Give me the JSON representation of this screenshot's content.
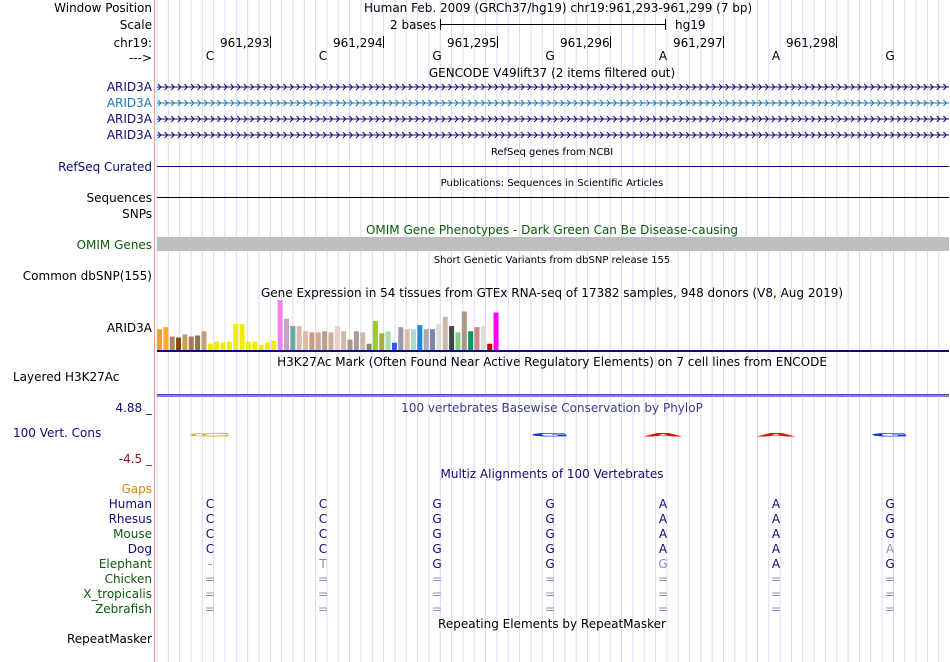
{
  "header": {
    "assembly_line": "Human Feb. 2009 (GRCh37/hg19)   chr19:961,293-961,299 (7 bp)",
    "scale_value": "2 bases",
    "scale_db": "hg19"
  },
  "labels": {
    "window_position": "Window Position",
    "scale": "Scale",
    "chromosome": "chr19:",
    "strand": "--->",
    "arid3a_1": "ARID3A",
    "arid3a_2": "ARID3A",
    "arid3a_3": "ARID3A",
    "arid3a_4": "ARID3A",
    "refseq": "RefSeq Curated",
    "sequences": "Sequences",
    "snps": "SNPs",
    "omim_genes": "OMIM Genes",
    "common_dbsnp": "Common dbSNP(155)",
    "gtex_gene": "ARID3A",
    "layered_h3k27ac": "Layered H3K27Ac",
    "cons_max": "4.88 _",
    "cons_track": "100 Vert. Cons",
    "cons_min": "-4.5 _",
    "gaps": "Gaps"
  },
  "ruler": {
    "positions": [
      "961,293",
      "961,294",
      "961,295",
      "961,296",
      "961,297",
      "961,298"
    ],
    "bases": [
      "C",
      "C",
      "G",
      "G",
      "A",
      "A",
      "G"
    ]
  },
  "track_titles": {
    "gencode": "GENCODE V49lift37 (2 items filtered out)",
    "refseq": "RefSeq genes from NCBI",
    "publications": "Publications: Sequences in Scientific Articles",
    "omim": "OMIM Gene Phenotypes - Dark Green Can Be Disease-causing",
    "snp155": "Short Genetic Variants from dbSNP release 155",
    "gtex": "Gene Expression in 54 tissues from GTEx RNA-seq of 17382 samples, 948 donors (V8, Aug 2019)",
    "h3k27ac": "H3K27Ac Mark (Often Found Near Active Regulatory Elements) on 7 cell lines from ENCODE",
    "phylop": "100 vertebrates Basewise Conservation by PhyloP",
    "multiz": "Multiz Alignments of 100 Vertebrates",
    "repeatmasker": "Repeating Elements by RepeatMasker"
  },
  "conservation_logo": [
    "C",
    "",
    "",
    "G",
    "A",
    "A",
    "G"
  ],
  "gtex_bars": {
    "values": [
      20,
      22,
      13,
      12,
      15,
      13,
      14,
      18,
      6,
      8,
      7,
      8,
      25,
      25,
      8,
      8,
      5,
      7,
      9,
      48,
      30,
      23,
      23,
      18,
      17,
      17,
      18,
      17,
      23,
      18,
      10,
      18,
      17,
      6,
      28,
      16,
      18,
      7,
      22,
      20,
      20,
      24,
      20,
      20,
      25,
      32,
      23,
      17,
      37,
      18,
      22,
      23,
      6,
      36
    ],
    "colors": [
      "#ff9933",
      "#ffaa33",
      "#aa8866",
      "#8b4513",
      "#c0a060",
      "#aa7766",
      "#8b7355",
      "#c0a080",
      "#eeee00",
      "#eeee00",
      "#eeee00",
      "#eeee00",
      "#eeee00",
      "#eeee00",
      "#eeee00",
      "#eeee00",
      "#eeee00",
      "#eeee00",
      "#eeee00",
      "#ee82ee",
      "#c8a0c8",
      "#66aaaa",
      "#ddbbaa",
      "#ddbbaa",
      "#cc9988",
      "#ccaa99",
      "#bba088",
      "#c8b0a0",
      "#eecccc",
      "#ccbbaa",
      "#aa9988",
      "#aa9999",
      "#ccbbaa",
      "#888888",
      "#99cc33",
      "#aaaa55",
      "#aaddaa",
      "#3355ff",
      "#9999aa",
      "#ddbbaa",
      "#aaddcc",
      "#2288dd",
      "#aaaaaa",
      "#7788aa",
      "#dddddd",
      "#ccbbaa",
      "#444444",
      "#88cc88",
      "#aa9988",
      "#009966",
      "#cc8888",
      "#dddddd",
      "#cc0000",
      "#ff00ff"
    ]
  },
  "alignments": [
    {
      "species": "Human",
      "bases": [
        "C",
        "C",
        "G",
        "G",
        "A",
        "A",
        "G"
      ],
      "colors": [
        "navy",
        "navy",
        "navy",
        "navy",
        "navy",
        "navy",
        "navy"
      ],
      "label_color": "#0c0c78"
    },
    {
      "species": "Rhesus",
      "bases": [
        "C",
        "C",
        "G",
        "G",
        "A",
        "A",
        "G"
      ],
      "colors": [
        "navy",
        "navy",
        "navy",
        "navy",
        "navy",
        "navy",
        "navy"
      ],
      "label_color": "#0c0c78"
    },
    {
      "species": "Mouse",
      "bases": [
        "C",
        "C",
        "G",
        "G",
        "A",
        "A",
        "G"
      ],
      "colors": [
        "navy",
        "navy",
        "navy",
        "navy",
        "navy",
        "navy",
        "navy"
      ],
      "label_color": "#0c5a0c"
    },
    {
      "species": "Dog",
      "bases": [
        "C",
        "C",
        "G",
        "G",
        "A",
        "A",
        "A"
      ],
      "colors": [
        "navy",
        "navy",
        "navy",
        "navy",
        "navy",
        "navy",
        "light"
      ],
      "label_color": "#0c0c78"
    },
    {
      "species": "Elephant",
      "bases": [
        "-",
        "T",
        "G",
        "G",
        "G",
        "A",
        "G"
      ],
      "colors": [
        "light",
        "light",
        "navy",
        "navy",
        "light",
        "navy",
        "navy"
      ],
      "label_color": "#0c5a0c"
    },
    {
      "species": "Chicken",
      "bases": [
        "=",
        "=",
        "=",
        "=",
        "=",
        "=",
        "="
      ],
      "colors": [
        "light",
        "light",
        "light",
        "light",
        "light",
        "light",
        "light"
      ],
      "label_color": "#0c5a0c"
    },
    {
      "species": "X_tropicalis",
      "bases": [
        "=",
        "=",
        "=",
        "=",
        "=",
        "=",
        "="
      ],
      "colors": [
        "light",
        "light",
        "light",
        "light",
        "light",
        "light",
        "light"
      ],
      "label_color": "#0c5a0c"
    },
    {
      "species": "Zebrafish",
      "bases": [
        "=",
        "=",
        "=",
        "=",
        "=",
        "=",
        "="
      ],
      "colors": [
        "light",
        "light",
        "light",
        "light",
        "light",
        "light",
        "light"
      ],
      "label_color": "#0c5a0c"
    }
  ],
  "repeatmasker_label": "RepeatMasker"
}
